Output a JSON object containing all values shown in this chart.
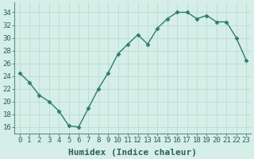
{
  "x": [
    0,
    1,
    2,
    3,
    4,
    5,
    6,
    7,
    8,
    9,
    10,
    11,
    12,
    13,
    14,
    15,
    16,
    17,
    18,
    19,
    20,
    21,
    22,
    23
  ],
  "y": [
    24.5,
    23,
    21,
    20,
    18.5,
    16.2,
    16,
    19,
    22,
    24.5,
    27.5,
    29,
    30.5,
    29,
    31.5,
    33,
    34,
    34,
    33,
    33.5,
    32.5,
    32.5,
    30,
    26.5
  ],
  "line_color": "#2e7d6e",
  "marker": "D",
  "marker_size": 2.5,
  "line_width": 1.0,
  "xlabel": "Humidex (Indice chaleur)",
  "xlabel_fontsize": 8,
  "ylabel_ticks": [
    16,
    18,
    20,
    22,
    24,
    26,
    28,
    30,
    32,
    34
  ],
  "xtick_labels": [
    "0",
    "1",
    "2",
    "3",
    "4",
    "5",
    "6",
    "7",
    "8",
    "9",
    "10",
    "11",
    "12",
    "13",
    "14",
    "15",
    "16",
    "17",
    "18",
    "19",
    "20",
    "21",
    "22",
    "23"
  ],
  "ylim": [
    15,
    35.5
  ],
  "xlim": [
    -0.5,
    23.5
  ],
  "bg_color": "#d5eee8",
  "grid_color": "#b8d8cc",
  "tick_fontsize": 6.5
}
